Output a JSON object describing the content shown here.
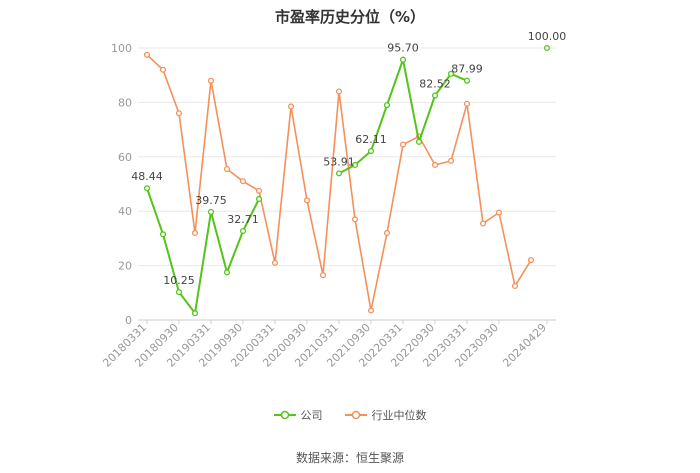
{
  "chart_data": {
    "type": "line",
    "title": "市盈率历史分位（%）",
    "ylim": [
      0,
      100
    ],
    "yticks": [
      0,
      20,
      40,
      60,
      80,
      100
    ],
    "x": [
      "20180331",
      "20180630",
      "20180930",
      "20181231",
      "20190331",
      "20190630",
      "20190930",
      "20191231",
      "20200331",
      "20200630",
      "20200930",
      "20201231",
      "20210331",
      "20210630",
      "20210930",
      "20211231",
      "20220331",
      "20220630",
      "20220930",
      "20221231",
      "20230331",
      "20230630",
      "20230930",
      "20231231",
      "20240331",
      "20240429"
    ],
    "xtick_labels": [
      "20180331",
      "20180930",
      "20190331",
      "20190930",
      "20200331",
      "20200930",
      "20210331",
      "20210930",
      "20220331",
      "20220930",
      "20230331",
      "20230930",
      "20240429"
    ],
    "grid": true,
    "legend_position": "bottom",
    "series": [
      {
        "name": "公司",
        "color": "#52c41a",
        "values": [
          48.44,
          31.5,
          10.25,
          2.5,
          39.75,
          17.5,
          32.71,
          44.5,
          null,
          null,
          null,
          null,
          53.91,
          57.0,
          62.11,
          79.0,
          95.7,
          65.5,
          82.52,
          90.5,
          87.99,
          null,
          null,
          null,
          null,
          100.0
        ],
        "labels": {
          "0": "48.44",
          "2": "10.25",
          "4": "39.75",
          "6": "32.71",
          "12": "53.91",
          "14": "62.11",
          "16": "95.70",
          "18": "82.52",
          "20": "87.99",
          "25": "100.00"
        }
      },
      {
        "name": "行业中位数",
        "color": "#f4905a",
        "values": [
          97.5,
          92.0,
          76.0,
          32.0,
          88.0,
          55.5,
          51.0,
          47.5,
          21.0,
          78.5,
          44.0,
          16.5,
          84.0,
          37.0,
          3.5,
          32.0,
          64.5,
          67.5,
          57.0,
          58.5,
          79.5,
          35.5,
          39.5,
          12.5,
          22.0,
          null
        ]
      }
    ]
  },
  "source": "数据来源：恒生聚源"
}
